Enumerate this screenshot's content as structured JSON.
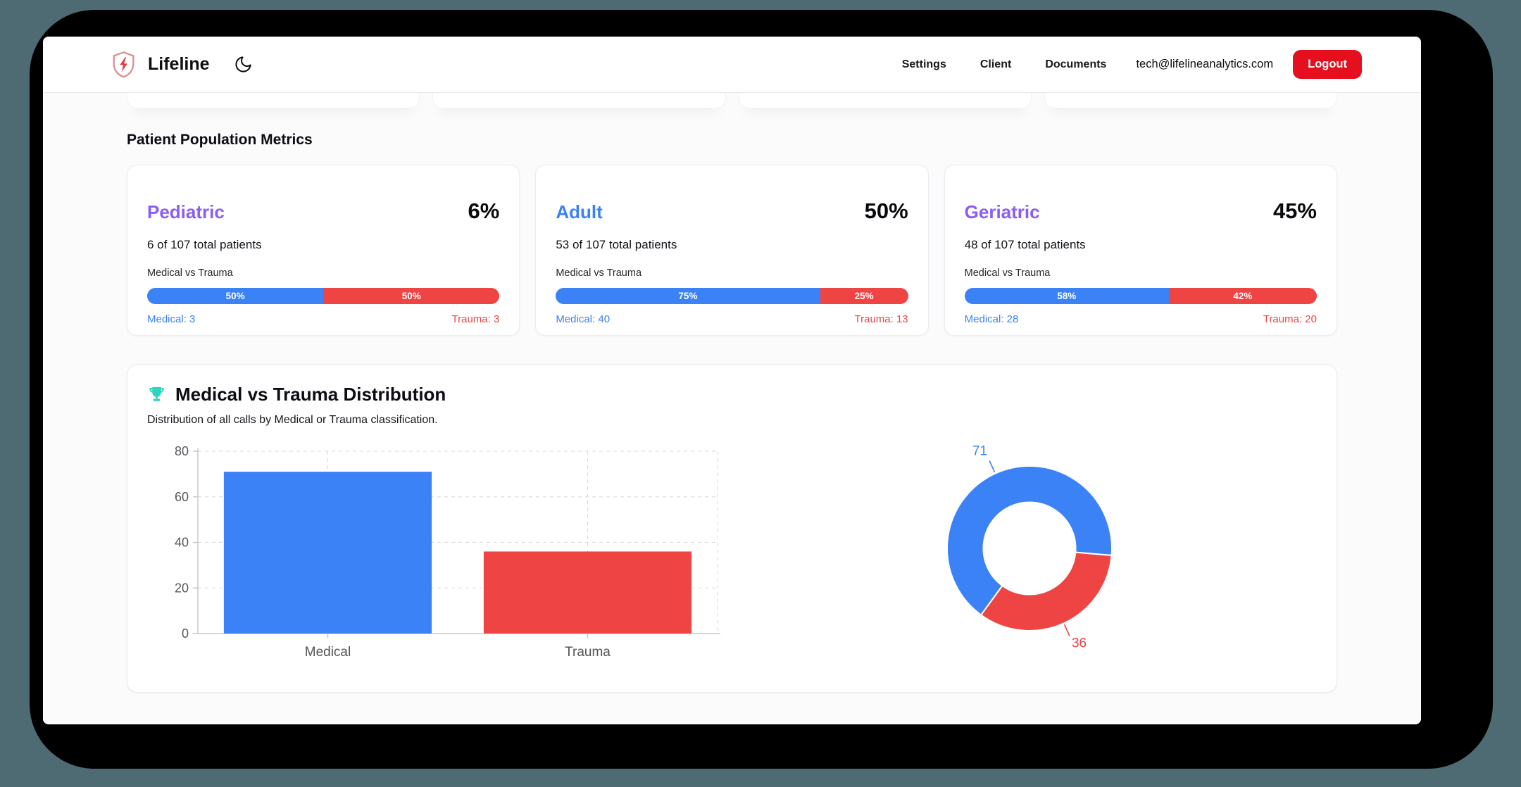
{
  "header": {
    "brand": "Lifeline",
    "nav_items": [
      "Settings",
      "Client",
      "Documents"
    ],
    "email": "tech@lifelineanalytics.com",
    "logout": "Logout"
  },
  "metrics": {
    "heading": "Patient Population Metrics",
    "cards": [
      {
        "name": "Pediatric",
        "accent": "#8b5cf6",
        "percent": "6%",
        "patients": "6 of 107 total patients",
        "bar_title": "Medical vs Trauma",
        "medical_share": 50,
        "trauma_share": 50,
        "medical_pct": "50%",
        "trauma_pct": "50%",
        "medical_label": "Medical: 3",
        "trauma_label": "Trauma: 3"
      },
      {
        "name": "Adult",
        "accent": "#3b82f6",
        "percent": "50%",
        "patients": "53 of 107 total patients",
        "bar_title": "Medical vs Trauma",
        "medical_share": 75,
        "trauma_share": 25,
        "medical_pct": "75%",
        "trauma_pct": "25%",
        "medical_label": "Medical: 40",
        "trauma_label": "Trauma: 13"
      },
      {
        "name": "Geriatric",
        "accent": "#8b5cf6",
        "percent": "45%",
        "patients": "48 of 107 total patients",
        "bar_title": "Medical vs Trauma",
        "medical_share": 58,
        "trauma_share": 42,
        "medical_pct": "58%",
        "trauma_pct": "42%",
        "medical_label": "Medical: 28",
        "trauma_label": "Trauma: 20"
      }
    ]
  },
  "distribution": {
    "title": "Medical vs Trauma Distribution",
    "subtitle": "Distribution of all calls by Medical or Trauma classification."
  },
  "chart_data": [
    {
      "type": "bar",
      "title": "Medical vs Trauma Distribution",
      "categories": [
        "Medical",
        "Trauma"
      ],
      "values": [
        71,
        36
      ],
      "colors": [
        "#3b82f6",
        "#ef4444"
      ],
      "xlabel": "",
      "ylabel": "",
      "ylim": [
        0,
        80
      ],
      "yticks": [
        0,
        20,
        40,
        60,
        80
      ],
      "grid": "dashed",
      "legend": "none"
    },
    {
      "type": "pie",
      "subtype": "doughnut",
      "labels": [
        "Medical",
        "Trauma"
      ],
      "values": [
        71,
        36
      ],
      "colors": [
        "#3b82f6",
        "#ef4444"
      ],
      "hole_ratio": 0.56,
      "rotation_deg": 216,
      "legend": "none",
      "datalabels": "outside-with-leader-lines"
    }
  ],
  "colors": {
    "medical_blue": "#3b82f6",
    "trauma_red": "#ef4444",
    "accent_purple": "#8b5cf6",
    "logout_red": "#e50f1e",
    "trophy_teal": "#2dd4bf",
    "page_background": "#4e6a73"
  }
}
